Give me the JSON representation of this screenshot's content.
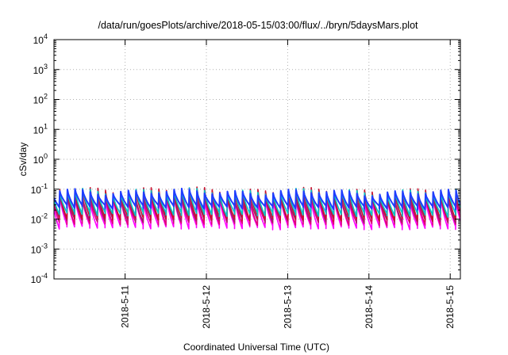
{
  "chart_data": {
    "type": "line",
    "title": "/data/run/goesPlots/archive/2018-05-15/03:00/flux/../bryn/5daysMars.plot",
    "xlabel": "Coordinated Universal Time (UTC)",
    "ylabel": "cSv/day",
    "yscale": "log",
    "ylim": [
      0.0001,
      10000
    ],
    "xlim": [
      "2018-05-10 03:00",
      "2018-05-15 03:00"
    ],
    "grid": true,
    "legend": "none",
    "x_tick_labels": [
      "2018-5-11",
      "2018-5-12",
      "2018-5-13",
      "2018-5-14",
      "2018-5-15"
    ],
    "y_tick_labels": [
      {
        "base": "10",
        "exp": "-4"
      },
      {
        "base": "10",
        "exp": "-3"
      },
      {
        "base": "10",
        "exp": "-2"
      },
      {
        "base": "10",
        "exp": "-1"
      },
      {
        "base": "10",
        "exp": "0"
      },
      {
        "base": "10",
        "exp": "1"
      },
      {
        "base": "10",
        "exp": "2"
      },
      {
        "base": "10",
        "exp": "3"
      },
      {
        "base": "10",
        "exp": "4"
      }
    ],
    "cycle_hours": 2.25,
    "series": [
      {
        "color": "#ff00ff",
        "peak": 0.05,
        "floor": 0.0055,
        "trend": 0.9
      },
      {
        "color": "#e0007a",
        "peak": 0.058,
        "floor": 0.0075,
        "trend": 0.9
      },
      {
        "color": "#a0206a",
        "peak": 0.065,
        "floor": 0.0095,
        "trend": 0.9
      },
      {
        "color": "#c8102e",
        "peak": 0.1,
        "floor": 0.011,
        "trend": 0.85
      },
      {
        "color": "#00c8c8",
        "peak": 0.09,
        "floor": 0.015,
        "trend": 0.9
      },
      {
        "color": "#1e3cff",
        "peak": 0.085,
        "floor": 0.026,
        "trend": 0.9
      }
    ]
  }
}
